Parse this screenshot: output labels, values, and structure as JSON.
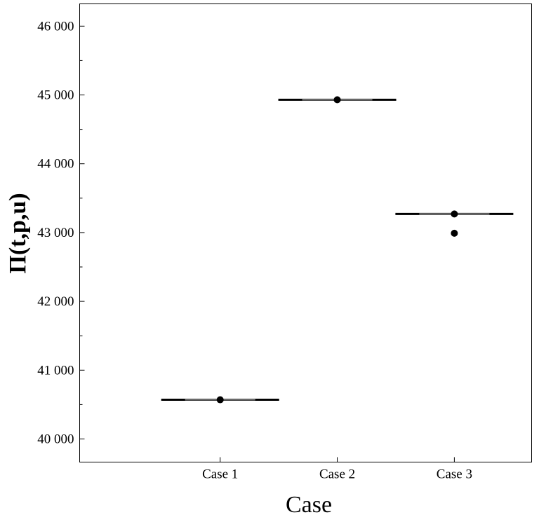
{
  "chart_data": {
    "type": "box",
    "title": "",
    "xlabel": "Case",
    "ylabel": "Π(t,p,u)",
    "categories": [
      "Case 1",
      "Case 2",
      "Case 3"
    ],
    "series": [
      {
        "name": "Case 1",
        "median": 40570,
        "q1": 40570,
        "q3": 40570,
        "whisker_low": 40570,
        "whisker_high": 40570,
        "points": [
          40570
        ],
        "outliers": []
      },
      {
        "name": "Case 2",
        "median": 44930,
        "q1": 44930,
        "q3": 44930,
        "whisker_low": 44930,
        "whisker_high": 44930,
        "points": [
          44930
        ],
        "outliers": []
      },
      {
        "name": "Case 3",
        "median": 43270,
        "q1": 43270,
        "q3": 43270,
        "whisker_low": 43270,
        "whisker_high": 43270,
        "points": [
          43270
        ],
        "outliers": [
          42990
        ]
      }
    ],
    "yticks": [
      40000,
      41000,
      42000,
      43000,
      44000,
      45000,
      46000
    ],
    "ytick_labels": [
      "40 000",
      "41 000",
      "42 000",
      "43 000",
      "44 000",
      "45 000",
      "46 000"
    ],
    "ylim": [
      39664,
      46324
    ],
    "xlim": [
      -0.2,
      3.66
    ],
    "grid": false,
    "colors": {
      "line": "#000000",
      "median": "#808080"
    }
  }
}
